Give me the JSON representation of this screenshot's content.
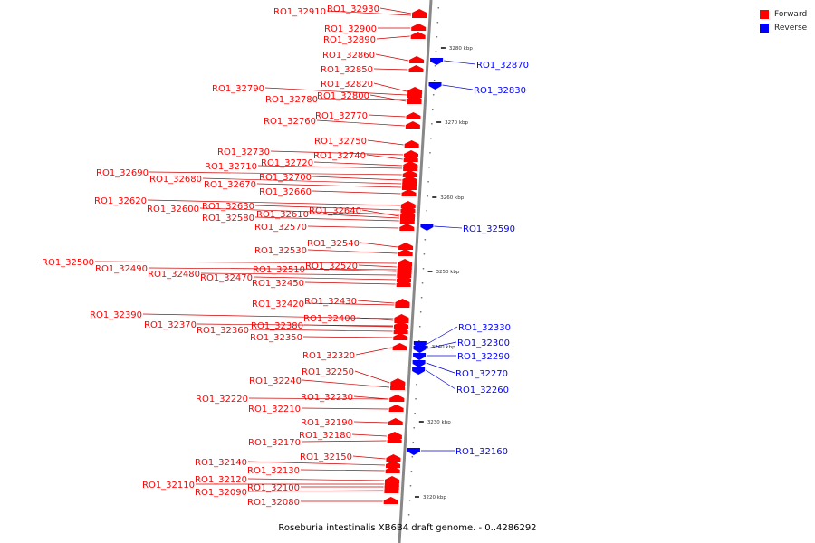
{
  "title": "Roseburia intestinalis XB6B4 draft genome. - 0..4286292",
  "legend": [
    {
      "label": "Forward",
      "color": "#ff0000"
    },
    {
      "label": "Reverse",
      "color": "#0000ff"
    }
  ],
  "colors": {
    "forward": "#ff0000",
    "reverse": "#0000ff",
    "axis": "#888888",
    "leader_fwd": "#cc0000",
    "leader_rev": "#0000cc"
  },
  "axis": {
    "unit": "kbp",
    "ticks": [
      "3280 kbp",
      "3270 kbp",
      "3260 kbp",
      "3250 kbp",
      "3240 kbp",
      "3230 kbp",
      "3220 kbp"
    ]
  },
  "genes": [
    {
      "name": "RO1_32910",
      "strand": "+",
      "y": 17
    },
    {
      "name": "RO1_32930",
      "strand": "+",
      "y": 15
    },
    {
      "name": "RO1_32900",
      "strand": "+",
      "y": 31
    },
    {
      "name": "RO1_32890",
      "strand": "+",
      "y": 40
    },
    {
      "name": "RO1_32870",
      "strand": "-",
      "y": 67
    },
    {
      "name": "RO1_32860",
      "strand": "+",
      "y": 67
    },
    {
      "name": "RO1_32850",
      "strand": "+",
      "y": 77
    },
    {
      "name": "RO1_32830",
      "strand": "-",
      "y": 94
    },
    {
      "name": "RO1_32820",
      "strand": "+",
      "y": 101
    },
    {
      "name": "RO1_32790",
      "strand": "+",
      "y": 105
    },
    {
      "name": "RO1_32780",
      "strand": "+",
      "y": 110
    },
    {
      "name": "RO1_32800",
      "strand": "+",
      "y": 112
    },
    {
      "name": "RO1_32770",
      "strand": "+",
      "y": 129
    },
    {
      "name": "RO1_32760",
      "strand": "+",
      "y": 139
    },
    {
      "name": "RO1_32750",
      "strand": "+",
      "y": 160
    },
    {
      "name": "RO1_32730",
      "strand": "+",
      "y": 171
    },
    {
      "name": "RO1_32740",
      "strand": "+",
      "y": 176
    },
    {
      "name": "RO1_32720",
      "strand": "+",
      "y": 183
    },
    {
      "name": "RO1_32710",
      "strand": "+",
      "y": 186
    },
    {
      "name": "RO1_32690",
      "strand": "+",
      "y": 193
    },
    {
      "name": "RO1_32700",
      "strand": "+",
      "y": 199
    },
    {
      "name": "RO1_32680",
      "strand": "+",
      "y": 203
    },
    {
      "name": "RO1_32670",
      "strand": "+",
      "y": 207
    },
    {
      "name": "RO1_32660",
      "strand": "+",
      "y": 214
    },
    {
      "name": "RO1_32620",
      "strand": "+",
      "y": 227
    },
    {
      "name": "RO1_32630",
      "strand": "+",
      "y": 232
    },
    {
      "name": "RO1_32600",
      "strand": "+",
      "y": 237
    },
    {
      "name": "RO1_32640",
      "strand": "+",
      "y": 239
    },
    {
      "name": "RO1_32610",
      "strand": "+",
      "y": 241
    },
    {
      "name": "RO1_32580",
      "strand": "+",
      "y": 244
    },
    {
      "name": "RO1_32570",
      "strand": "+",
      "y": 252
    },
    {
      "name": "RO1_32590",
      "strand": "-",
      "y": 250
    },
    {
      "name": "RO1_32540",
      "strand": "+",
      "y": 273
    },
    {
      "name": "RO1_32530",
      "strand": "+",
      "y": 280
    },
    {
      "name": "RO1_32500",
      "strand": "+",
      "y": 291
    },
    {
      "name": "RO1_32520",
      "strand": "+",
      "y": 295
    },
    {
      "name": "RO1_32490",
      "strand": "+",
      "y": 298
    },
    {
      "name": "RO1_32510",
      "strand": "+",
      "y": 300
    },
    {
      "name": "RO1_32480",
      "strand": "+",
      "y": 304
    },
    {
      "name": "RO1_32470",
      "strand": "+",
      "y": 309
    },
    {
      "name": "RO1_32450",
      "strand": "+",
      "y": 314
    },
    {
      "name": "RO1_32430",
      "strand": "+",
      "y": 335
    },
    {
      "name": "RO1_32420",
      "strand": "+",
      "y": 337
    },
    {
      "name": "RO1_32390",
      "strand": "+",
      "y": 352
    },
    {
      "name": "RO1_32400",
      "strand": "+",
      "y": 354
    },
    {
      "name": "RO1_32380",
      "strand": "+",
      "y": 361
    },
    {
      "name": "RO1_32370",
      "strand": "+",
      "y": 360
    },
    {
      "name": "RO1_32360",
      "strand": "+",
      "y": 366
    },
    {
      "name": "RO1_32350",
      "strand": "+",
      "y": 373
    },
    {
      "name": "RO1_32330",
      "strand": "-",
      "y": 380
    },
    {
      "name": "RO1_32320",
      "strand": "+",
      "y": 384
    },
    {
      "name": "RO1_32300",
      "strand": "-",
      "y": 385
    },
    {
      "name": "RO1_32290",
      "strand": "-",
      "y": 393
    },
    {
      "name": "RO1_32270",
      "strand": "-",
      "y": 401
    },
    {
      "name": "RO1_32260",
      "strand": "-",
      "y": 409
    },
    {
      "name": "RO1_32250",
      "strand": "+",
      "y": 423
    },
    {
      "name": "RO1_32240",
      "strand": "+",
      "y": 428
    },
    {
      "name": "RO1_32230",
      "strand": "+",
      "y": 441
    },
    {
      "name": "RO1_32220",
      "strand": "+",
      "y": 441
    },
    {
      "name": "RO1_32210",
      "strand": "+",
      "y": 452
    },
    {
      "name": "RO1_32190",
      "strand": "+",
      "y": 467
    },
    {
      "name": "RO1_32180",
      "strand": "+",
      "y": 482
    },
    {
      "name": "RO1_32170",
      "strand": "+",
      "y": 487
    },
    {
      "name": "RO1_32160",
      "strand": "-",
      "y": 498
    },
    {
      "name": "RO1_32150",
      "strand": "+",
      "y": 507
    },
    {
      "name": "RO1_32140",
      "strand": "+",
      "y": 514
    },
    {
      "name": "RO1_32130",
      "strand": "+",
      "y": 520
    },
    {
      "name": "RO1_32120",
      "strand": "+",
      "y": 531
    },
    {
      "name": "RO1_32110",
      "strand": "+",
      "y": 535
    },
    {
      "name": "RO1_32100",
      "strand": "+",
      "y": 538
    },
    {
      "name": "RO1_32090",
      "strand": "+",
      "y": 542
    },
    {
      "name": "RO1_32080",
      "strand": "+",
      "y": 554
    }
  ]
}
